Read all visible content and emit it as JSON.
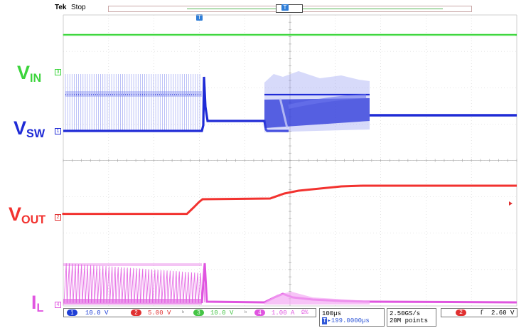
{
  "header": {
    "brand": "Tek",
    "status": "Stop",
    "trigger_marker": "T"
  },
  "channels": {
    "vin": {
      "label_main": "V",
      "label_sub": "IN",
      "marker": "3",
      "color": "#3ad43a"
    },
    "vsw": {
      "label_main": "V",
      "label_sub": "SW",
      "marker": "1",
      "color": "#1f2bd6"
    },
    "vout": {
      "label_main": "V",
      "label_sub": "OUT",
      "marker": "2",
      "color": "#f2322f"
    },
    "il": {
      "label_main": "I",
      "label_sub": "L",
      "marker": "4",
      "color": "#e055e0"
    }
  },
  "bottom": {
    "ch1": {
      "num": "1",
      "value": "10.0 V",
      "color": "#1f3fd6"
    },
    "ch2": {
      "num": "2",
      "value": "5.00 V",
      "color": "#e03030"
    },
    "ch3": {
      "num": "3",
      "value": "10.0 V",
      "color": "#45c445"
    },
    "ch4": {
      "num": "4",
      "value": "1.00 A",
      "color": "#e055e0"
    },
    "ch2_bw": "Ω%",
    "timebase": "100µs",
    "position": "▸199.0000µs",
    "position_marker": "T",
    "sample_rate": "2.50GS/s",
    "record_length": "20M points",
    "trigger_source": "2",
    "trigger_slope": "ſ",
    "trigger_level": "2.60 V"
  }
}
